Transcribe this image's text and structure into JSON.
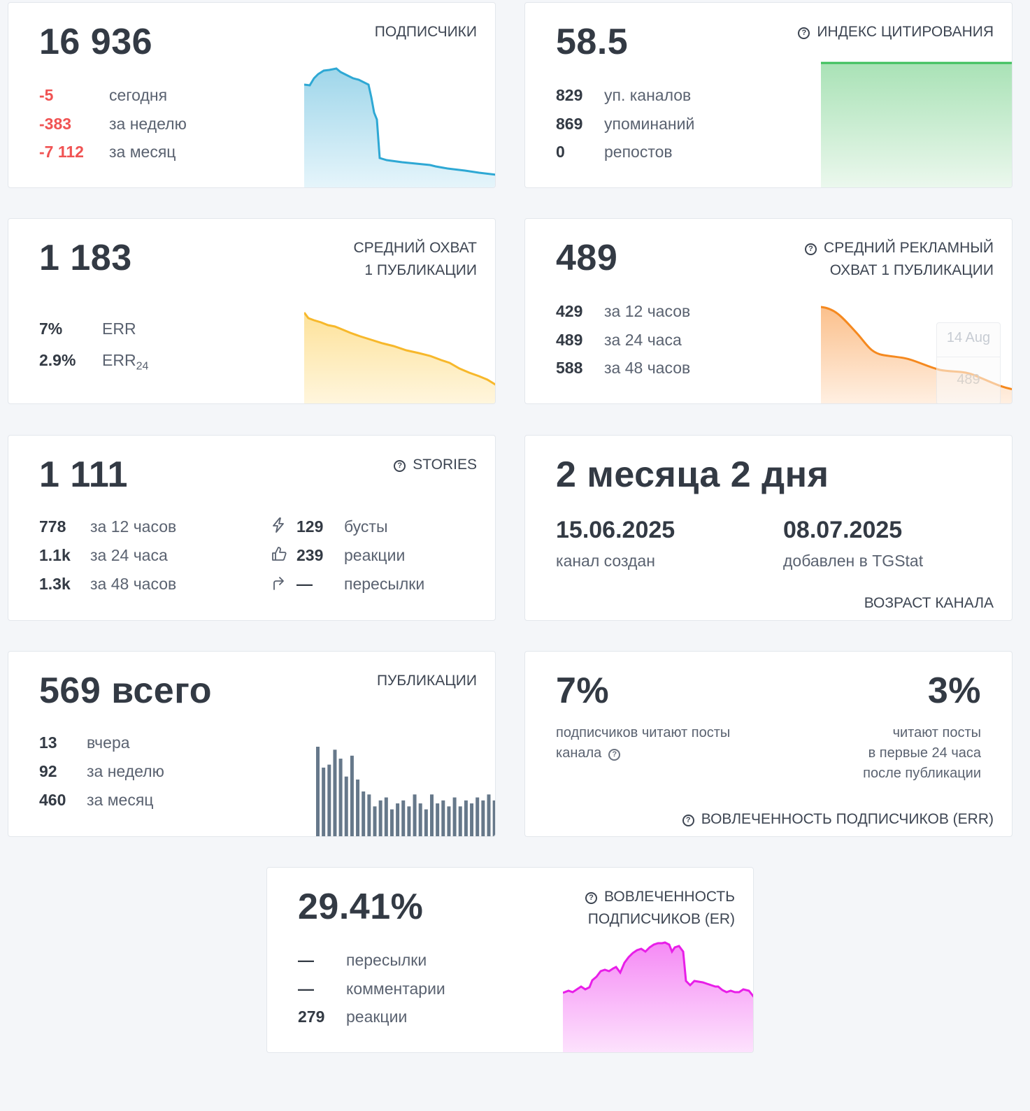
{
  "subscribers": {
    "value": "16 936",
    "title": "ПОДПИСЧИКИ",
    "rows": [
      {
        "value": "-5",
        "label": "сегодня"
      },
      {
        "value": "-383",
        "label": "за неделю"
      },
      {
        "value": "-7 112",
        "label": "за месяц"
      }
    ],
    "color": "#2ea8d4"
  },
  "citation": {
    "value": "58.5",
    "title": "ИНДЕКС ЦИТИРОВАНИЯ",
    "rows": [
      {
        "value": "829",
        "label": "уп. каналов"
      },
      {
        "value": "869",
        "label": "упоминаний"
      },
      {
        "value": "0",
        "label": "репостов"
      }
    ],
    "color": "#3bbf5a"
  },
  "avg_reach": {
    "value": "1 183",
    "title_line1": "СРЕДНИЙ ОХВАТ",
    "title_line2": "1 ПУБЛИКАЦИИ",
    "rows": [
      {
        "value": "7%",
        "label": "ERR"
      },
      {
        "value": "2.9%",
        "label": "ERR",
        "sub": "24"
      }
    ],
    "color": "#f7b82b"
  },
  "ad_reach": {
    "value": "489",
    "title_line1": "СРЕДНИЙ РЕКЛАМНЫЙ",
    "title_line2": "ОХВАТ 1 ПУБЛИКАЦИИ",
    "rows": [
      {
        "value": "429",
        "label": "за 12 часов"
      },
      {
        "value": "489",
        "label": "за 24 часа"
      },
      {
        "value": "588",
        "label": "за 48 часов"
      }
    ],
    "tooltip_date": "14 Aug",
    "tooltip_value": "489",
    "color": "#f5891f"
  },
  "stories": {
    "value": "1 111",
    "title": "STORIES",
    "rows": [
      {
        "value": "778",
        "label": "за 12 часов"
      },
      {
        "value": "1.1k",
        "label": "за 24 часа"
      },
      {
        "value": "1.3k",
        "label": "за 48 часов"
      }
    ],
    "rows_right": [
      {
        "icon": "bolt-icon",
        "value": "129",
        "label": "бусты"
      },
      {
        "icon": "thumbs-up-icon",
        "value": "239",
        "label": "реакции"
      },
      {
        "icon": "share-arrow-icon",
        "value": "—",
        "label": "пересылки"
      }
    ]
  },
  "age": {
    "value": "2 месяца 2 дня",
    "created_date": "15.06.2025",
    "created_label": "канал создан",
    "added_date": "08.07.2025",
    "added_label": "добавлен в TGStat",
    "title": "ВОЗРАСТ КАНАЛА"
  },
  "publications": {
    "value": "569 всего",
    "title": "ПУБЛИКАЦИИ",
    "rows": [
      {
        "value": "13",
        "label": "вчера"
      },
      {
        "value": "92",
        "label": "за неделю"
      },
      {
        "value": "460",
        "label": "за месяц"
      }
    ],
    "color": "#66788a",
    "bars": [
      30,
      23,
      24,
      29,
      26,
      20,
      27,
      19,
      15,
      14,
      10,
      12,
      13,
      9,
      11,
      12,
      10,
      14,
      11,
      9,
      14,
      11,
      12,
      10,
      13,
      10,
      12,
      11,
      13,
      12,
      14,
      12
    ]
  },
  "err": {
    "left_value": "7%",
    "left_text_line1": "подписчиков читают посты",
    "left_text_line2": "канала",
    "right_value": "3%",
    "right_text_line1": "читают посты",
    "right_text_line2": "в первые 24 часа",
    "right_text_line3": "после публикации",
    "title": "ВОВЛЕЧЕННОСТЬ ПОДПИСЧИКОВ (ERR)"
  },
  "er": {
    "value": "29.41%",
    "title_line1": "ВОВЛЕЧЕННОСТЬ",
    "title_line2": "ПОДПИСЧИКОВ (ER)",
    "rows": [
      {
        "value": "—",
        "label": "пересылки"
      },
      {
        "value": "—",
        "label": "комментарии"
      },
      {
        "value": "279",
        "label": "реакции"
      }
    ],
    "color": "#e81ee8"
  },
  "help_icon": "question-circle-icon"
}
